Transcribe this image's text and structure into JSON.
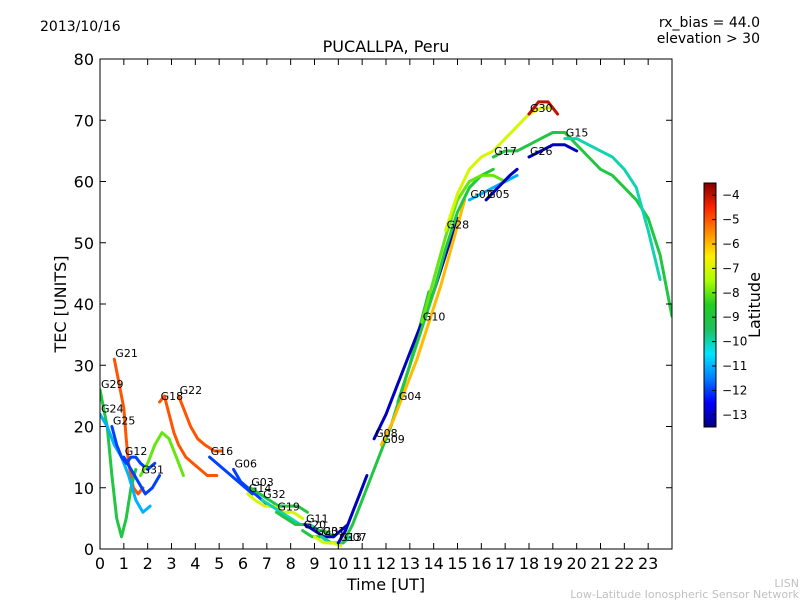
{
  "header": {
    "date": "2013/10/16",
    "rx_bias": "rx_bias = 44.0",
    "elevation": "elevation > 30"
  },
  "footer": {
    "line1": "LISN",
    "line2": "Low-Latitude Ionospheric Sensor Network"
  },
  "colorbar": {
    "label": "Latitude",
    "ticks": [
      -4,
      -5,
      -6,
      -7,
      -8,
      -9,
      -10,
      -11,
      -12,
      -13
    ],
    "range": [
      -13.5,
      -3.5
    ],
    "stops": [
      "#00007f",
      "#0000ff",
      "#007fff",
      "#00e5ff",
      "#20c060",
      "#22cc22",
      "#aaff00",
      "#ffee00",
      "#ff8800",
      "#ff2200",
      "#7f0000"
    ]
  },
  "chart_data": {
    "type": "scatter",
    "title": "PUCALLPA, Peru",
    "xlabel": "Time [UT]",
    "ylabel": "TEC [UNITS]",
    "xlim": [
      0,
      24
    ],
    "ylim": [
      0,
      80
    ],
    "xticks": [
      0,
      1,
      2,
      3,
      4,
      5,
      6,
      7,
      8,
      9,
      10,
      11,
      12,
      13,
      14,
      15,
      16,
      17,
      18,
      19,
      20,
      21,
      22,
      23
    ],
    "yticks": [
      0,
      10,
      20,
      30,
      40,
      50,
      60,
      70,
      80
    ],
    "grid": false,
    "series": [
      {
        "name": "G21",
        "lat": -5,
        "x": [
          0.6,
          0.8,
          1.0,
          1.1,
          1.2,
          1.4,
          1.6,
          1.8
        ],
        "y": [
          31,
          27,
          23,
          18,
          14,
          10,
          9,
          10
        ]
      },
      {
        "name": "G29",
        "lat": -9,
        "x": [
          0.0,
          0.3,
          0.5,
          0.7,
          0.9,
          1.1,
          1.3,
          1.5
        ],
        "y": [
          26,
          20,
          12,
          5,
          2,
          5,
          10,
          13
        ]
      },
      {
        "name": "G24",
        "lat": -11,
        "x": [
          0.0,
          0.3,
          0.6,
          0.9,
          1.2,
          1.5,
          1.8,
          2.1
        ],
        "y": [
          22,
          20,
          17,
          15,
          12,
          8,
          6,
          7
        ]
      },
      {
        "name": "G25",
        "lat": -12,
        "x": [
          0.5,
          0.7,
          0.9,
          1.1,
          1.3,
          1.5,
          1.7,
          2.0,
          2.3
        ],
        "y": [
          20,
          17,
          15,
          14,
          15,
          15,
          14,
          13,
          14
        ]
      },
      {
        "name": "G12",
        "lat": -12,
        "x": [
          1.0,
          1.3,
          1.6,
          1.9,
          2.2,
          2.5
        ],
        "y": [
          15,
          13,
          11,
          9,
          10,
          12
        ]
      },
      {
        "name": "G31",
        "lat": -8,
        "x": [
          1.7,
          2.0,
          2.3,
          2.6,
          2.9,
          3.2,
          3.5
        ],
        "y": [
          12,
          14,
          17,
          19,
          18,
          15,
          12
        ]
      },
      {
        "name": "G18",
        "lat": -5,
        "x": [
          2.5,
          2.7,
          2.9,
          3.1,
          3.3,
          3.6,
          3.9,
          4.2,
          4.5,
          4.9
        ],
        "y": [
          24,
          25,
          22,
          19,
          17,
          15,
          14,
          13,
          12,
          12
        ]
      },
      {
        "name": "G22",
        "lat": -5,
        "x": [
          3.3,
          3.5,
          3.8,
          4.1,
          4.4,
          4.8,
          5.1
        ],
        "y": [
          25,
          23,
          20,
          18,
          17,
          16,
          16
        ]
      },
      {
        "name": "G16",
        "lat": -12,
        "x": [
          4.6,
          4.9,
          5.2,
          5.5,
          5.8,
          6.1,
          6.4
        ],
        "y": [
          15,
          14,
          13,
          12,
          11,
          10,
          9
        ]
      },
      {
        "name": "G06",
        "lat": -12,
        "x": [
          5.6,
          5.9,
          6.2,
          6.5,
          6.8,
          7.1,
          7.4,
          7.7
        ],
        "y": [
          13,
          11,
          10,
          9,
          8,
          7,
          7,
          7
        ]
      },
      {
        "name": "G03",
        "lat": -9,
        "x": [
          6.3,
          6.7,
          7.1,
          7.5,
          7.9,
          8.3,
          8.7
        ],
        "y": [
          10,
          9,
          8,
          7,
          7,
          7,
          6
        ]
      },
      {
        "name": "G14",
        "lat": -7,
        "x": [
          6.2,
          6.5,
          6.9,
          7.3,
          7.7,
          8.1,
          8.5
        ],
        "y": [
          9,
          8,
          7,
          7,
          6,
          6,
          5
        ]
      },
      {
        "name": "G32",
        "lat": -10,
        "x": [
          6.8,
          7.2,
          7.6,
          8.0,
          8.4,
          8.8,
          9.2
        ],
        "y": [
          8,
          7,
          6,
          5,
          4,
          4,
          3
        ]
      },
      {
        "name": "G19",
        "lat": -9,
        "x": [
          7.4,
          7.8,
          8.2,
          8.6,
          9.0,
          9.4,
          9.8
        ],
        "y": [
          6,
          5,
          4,
          4,
          3,
          3,
          2
        ]
      },
      {
        "name": "G11",
        "lat": -13,
        "x": [
          8.6,
          9.0,
          9.4,
          9.8,
          10.1,
          10.4
        ],
        "y": [
          4,
          3,
          2,
          2,
          3,
          4
        ]
      },
      {
        "name": "G20",
        "lat": -9,
        "x": [
          8.5,
          8.9,
          9.3,
          9.7,
          10.0
        ],
        "y": [
          3,
          2,
          2,
          1,
          1
        ]
      },
      {
        "name": "G01",
        "lat": -10,
        "x": [
          9.3,
          9.6,
          9.9,
          10.2,
          10.5
        ],
        "y": [
          2,
          1,
          1,
          1,
          2
        ]
      },
      {
        "name": "G23",
        "lat": -7,
        "x": [
          9.0,
          9.4,
          9.8,
          10.1
        ],
        "y": [
          2,
          1,
          1,
          0.5
        ]
      },
      {
        "name": "G13",
        "lat": -13,
        "x": [
          10.0,
          10.3,
          10.6,
          10.9,
          11.2
        ],
        "y": [
          1,
          3,
          6,
          9,
          12
        ]
      },
      {
        "name": "G07",
        "lat": -9,
        "x": [
          10.2,
          10.6,
          11.0,
          11.4,
          11.8,
          12.2,
          12.6,
          13.0,
          13.4,
          13.8
        ],
        "y": [
          1,
          4,
          8,
          12,
          16,
          20,
          25,
          30,
          36,
          42
        ]
      },
      {
        "name": "G08",
        "lat": -13,
        "x": [
          11.5,
          12.0,
          12.5,
          13.0,
          13.5,
          14.0,
          14.5,
          15.0
        ],
        "y": [
          18,
          22,
          27,
          32,
          37,
          42,
          48,
          54
        ]
      },
      {
        "name": "G09",
        "lat": -6,
        "x": [
          11.8,
          12.3,
          12.8,
          13.3,
          13.8,
          14.3,
          14.8,
          15.3
        ],
        "y": [
          17,
          21,
          26,
          31,
          37,
          43,
          50,
          57
        ]
      },
      {
        "name": "G04",
        "lat": -9,
        "x": [
          12.5,
          13.0,
          13.5,
          14.0,
          14.5,
          15.0,
          15.5,
          16.0,
          16.5
        ],
        "y": [
          24,
          30,
          36,
          42,
          49,
          55,
          59,
          61,
          62
        ]
      },
      {
        "name": "G10",
        "lat": -8,
        "x": [
          13.5,
          14.0,
          14.5,
          15.0,
          15.5,
          16.0,
          16.5,
          17.0
        ],
        "y": [
          37,
          44,
          51,
          57,
          60,
          61,
          61,
          60
        ]
      },
      {
        "name": "G28",
        "lat": -7,
        "x": [
          14.5,
          15.0,
          15.5,
          16.0,
          16.5,
          17.0,
          17.5,
          18.0,
          18.5,
          19.0
        ],
        "y": [
          52,
          58,
          62,
          64,
          65,
          67,
          69,
          71,
          72,
          72
        ]
      },
      {
        "name": "G02",
        "lat": -11,
        "x": [
          15.5,
          16.0,
          16.5,
          17.0,
          17.5
        ],
        "y": [
          57,
          58,
          59,
          60,
          61
        ]
      },
      {
        "name": "G05",
        "lat": -13,
        "x": [
          16.2,
          16.7,
          17.2,
          17.5
        ],
        "y": [
          57,
          59,
          61,
          62
        ]
      },
      {
        "name": "G17",
        "lat": -9,
        "x": [
          16.5,
          17.0,
          17.5,
          18.0,
          18.5,
          19.0,
          19.5,
          20.0,
          20.5,
          21.0,
          21.5,
          22.0,
          22.5,
          23.0,
          23.5,
          24.0
        ],
        "y": [
          64,
          65,
          65,
          66,
          67,
          68,
          68,
          66,
          64,
          62,
          61,
          59,
          57,
          54,
          48,
          38
        ]
      },
      {
        "name": "G26",
        "lat": -13,
        "x": [
          18.0,
          18.5,
          19.0,
          19.5,
          20.0
        ],
        "y": [
          64,
          65,
          66,
          66,
          65
        ]
      },
      {
        "name": "G15",
        "lat": -10,
        "x": [
          19.5,
          20.0,
          20.5,
          21.0,
          21.5,
          22.0,
          22.5,
          23.0,
          23.5
        ],
        "y": [
          67,
          67,
          66,
          65,
          64,
          62,
          59,
          52,
          44
        ]
      },
      {
        "name": "G30",
        "lat": -4,
        "x": [
          18.0,
          18.4,
          18.8,
          19.2
        ],
        "y": [
          71,
          73,
          73,
          71
        ]
      }
    ]
  }
}
